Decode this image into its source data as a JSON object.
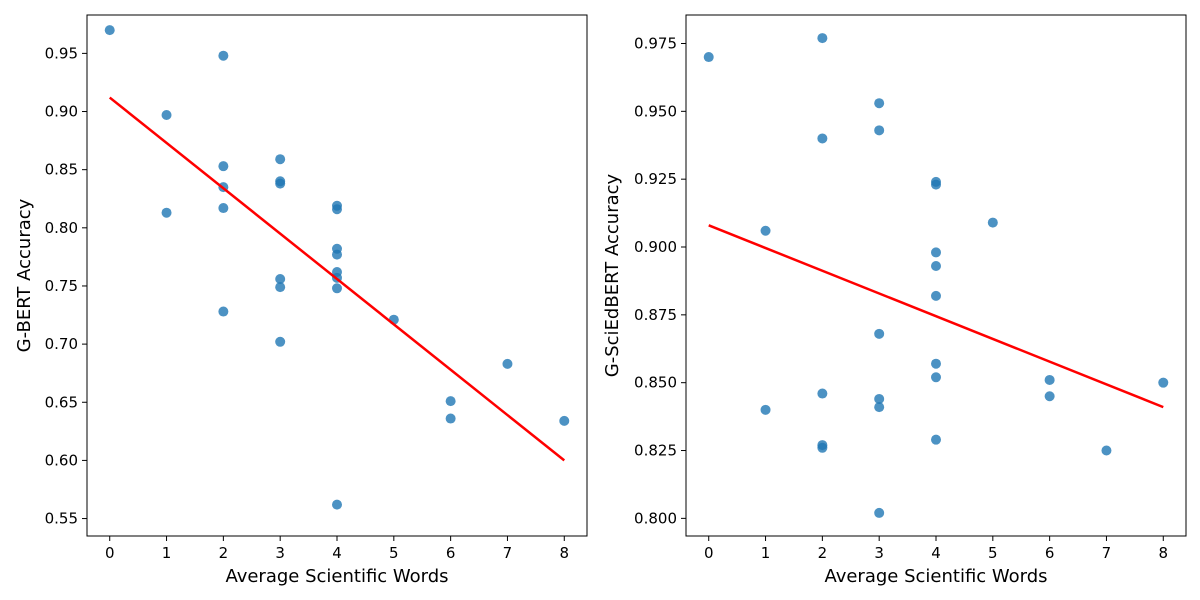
{
  "chart_data": [
    {
      "type": "scatter",
      "title": "",
      "xlabel": "Average Scientific Words",
      "ylabel": "G-BERT Accuracy",
      "xlim": [
        -0.4,
        8.4
      ],
      "ylim": [
        0.535,
        0.983
      ],
      "xticks": [
        0,
        1,
        2,
        3,
        4,
        5,
        6,
        7,
        8
      ],
      "yticks": [
        0.55,
        0.6,
        0.65,
        0.7,
        0.75,
        0.8,
        0.85,
        0.9,
        0.95
      ],
      "ytick_labels": [
        "0.55",
        "0.60",
        "0.65",
        "0.70",
        "0.75",
        "0.80",
        "0.85",
        "0.90",
        "0.95"
      ],
      "grid": false,
      "point_color": "#1f77b4",
      "trend_color": "#ff0000",
      "points": [
        {
          "x": 0,
          "y": 0.97
        },
        {
          "x": 1,
          "y": 0.897
        },
        {
          "x": 1,
          "y": 0.813
        },
        {
          "x": 2,
          "y": 0.948
        },
        {
          "x": 2,
          "y": 0.853
        },
        {
          "x": 2,
          "y": 0.835
        },
        {
          "x": 2,
          "y": 0.817
        },
        {
          "x": 2,
          "y": 0.728
        },
        {
          "x": 3,
          "y": 0.859
        },
        {
          "x": 3,
          "y": 0.84
        },
        {
          "x": 3,
          "y": 0.838
        },
        {
          "x": 3,
          "y": 0.756
        },
        {
          "x": 3,
          "y": 0.749
        },
        {
          "x": 3,
          "y": 0.702
        },
        {
          "x": 4,
          "y": 0.819
        },
        {
          "x": 4,
          "y": 0.816
        },
        {
          "x": 4,
          "y": 0.782
        },
        {
          "x": 4,
          "y": 0.777
        },
        {
          "x": 4,
          "y": 0.762
        },
        {
          "x": 4,
          "y": 0.757
        },
        {
          "x": 4,
          "y": 0.748
        },
        {
          "x": 4,
          "y": 0.562
        },
        {
          "x": 5,
          "y": 0.721
        },
        {
          "x": 6,
          "y": 0.651
        },
        {
          "x": 6,
          "y": 0.636
        },
        {
          "x": 7,
          "y": 0.683
        },
        {
          "x": 8,
          "y": 0.634
        }
      ],
      "trend": {
        "x0": 0,
        "y0": 0.912,
        "x1": 8,
        "y1": 0.6
      }
    },
    {
      "type": "scatter",
      "title": "",
      "xlabel": "Average Scientific Words",
      "ylabel": "G-SciEdBERT Accuracy",
      "xlim": [
        -0.4,
        8.4
      ],
      "ylim": [
        0.7935,
        0.9855
      ],
      "xticks": [
        0,
        1,
        2,
        3,
        4,
        5,
        6,
        7,
        8
      ],
      "yticks": [
        0.8,
        0.825,
        0.85,
        0.875,
        0.9,
        0.925,
        0.95,
        0.975
      ],
      "ytick_labels": [
        "0.800",
        "0.825",
        "0.850",
        "0.875",
        "0.900",
        "0.925",
        "0.950",
        "0.975"
      ],
      "grid": false,
      "point_color": "#1f77b4",
      "trend_color": "#ff0000",
      "points": [
        {
          "x": 0,
          "y": 0.97
        },
        {
          "x": 1,
          "y": 0.906
        },
        {
          "x": 1,
          "y": 0.84
        },
        {
          "x": 2,
          "y": 0.977
        },
        {
          "x": 2,
          "y": 0.94
        },
        {
          "x": 2,
          "y": 0.846
        },
        {
          "x": 2,
          "y": 0.827
        },
        {
          "x": 2,
          "y": 0.826
        },
        {
          "x": 3,
          "y": 0.953
        },
        {
          "x": 3,
          "y": 0.943
        },
        {
          "x": 3,
          "y": 0.868
        },
        {
          "x": 3,
          "y": 0.844
        },
        {
          "x": 3,
          "y": 0.841
        },
        {
          "x": 3,
          "y": 0.802
        },
        {
          "x": 4,
          "y": 0.924
        },
        {
          "x": 4,
          "y": 0.923
        },
        {
          "x": 4,
          "y": 0.898
        },
        {
          "x": 4,
          "y": 0.893
        },
        {
          "x": 4,
          "y": 0.882
        },
        {
          "x": 4,
          "y": 0.857
        },
        {
          "x": 4,
          "y": 0.852
        },
        {
          "x": 4,
          "y": 0.829
        },
        {
          "x": 5,
          "y": 0.909
        },
        {
          "x": 6,
          "y": 0.851
        },
        {
          "x": 6,
          "y": 0.845
        },
        {
          "x": 7,
          "y": 0.825
        },
        {
          "x": 8,
          "y": 0.85
        }
      ],
      "trend": {
        "x0": 0,
        "y0": 0.908,
        "x1": 8,
        "y1": 0.841
      }
    }
  ]
}
